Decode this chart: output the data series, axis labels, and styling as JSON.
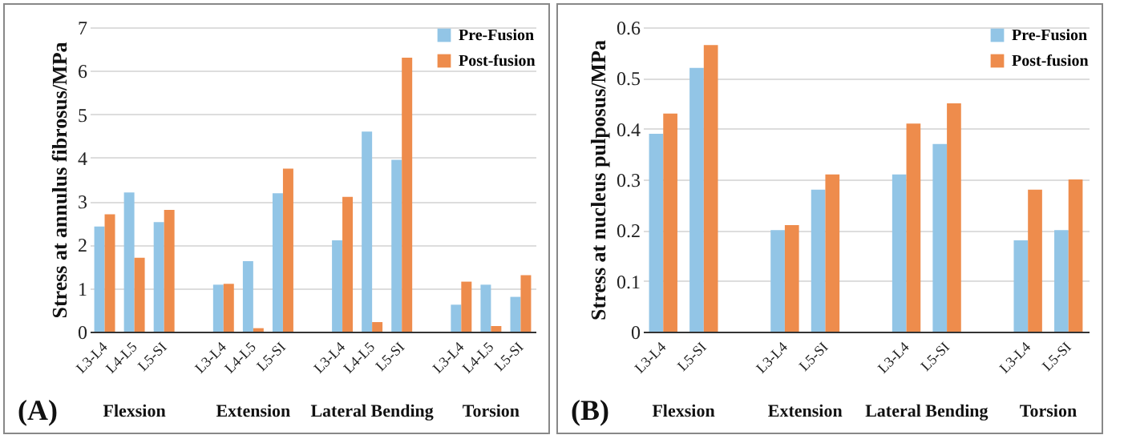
{
  "chart_data": [
    {
      "type": "bar",
      "ylabel": "Stress at annulus fibrosus/MPa",
      "categories": [
        "L3-L4",
        "L4-L5",
        "L5-SI",
        null,
        "L3-L4",
        "L4-L5",
        "L5-SI",
        null,
        "L3-L4",
        "L4-L5",
        "L5-SI",
        null,
        "L3-L4",
        "L4-L5",
        "L5-SI"
      ],
      "series": [
        {
          "name": "Pre-Fusion",
          "color": "#92c5e6",
          "values": [
            2.42,
            3.2,
            2.52,
            null,
            1.08,
            1.62,
            3.18,
            null,
            2.1,
            4.6,
            3.95,
            null,
            0.62,
            1.08,
            0.8
          ]
        },
        {
          "name": "Post-fusion",
          "color": "#ee8c4c",
          "values": [
            2.7,
            1.7,
            2.8,
            null,
            1.1,
            0.08,
            3.75,
            null,
            3.1,
            0.22,
            6.3,
            null,
            1.15,
            0.13,
            1.3
          ]
        }
      ],
      "ylim": [
        0,
        7
      ],
      "yticks": [
        0,
        1,
        2,
        3,
        4,
        5,
        6,
        7
      ],
      "grid": "y",
      "legend": "top right",
      "annotations": [
        "(A)",
        "Flexsion",
        "Extension",
        "Lateral Bending",
        "Torsion"
      ]
    },
    {
      "type": "bar",
      "ylabel": "Stress at nucleus pulposus/MPa",
      "categories": [
        "L3-L4",
        "L5-SI",
        null,
        "L3-L4",
        "L5-SI",
        null,
        "L3-L4",
        "L5-SI",
        null,
        "L3-L4",
        "L5-SI"
      ],
      "series": [
        {
          "name": "Pre-Fusion",
          "color": "#92c5e6",
          "values": [
            0.39,
            0.52,
            null,
            0.2,
            0.28,
            null,
            0.31,
            0.37,
            null,
            0.18,
            0.2
          ]
        },
        {
          "name": "Post-fusion",
          "color": "#ee8c4c",
          "values": [
            0.43,
            0.565,
            null,
            0.21,
            0.31,
            null,
            0.41,
            0.45,
            null,
            0.28,
            0.3
          ]
        }
      ],
      "ylim": [
        0,
        0.6
      ],
      "yticks": [
        0,
        0.1,
        0.2,
        0.3,
        0.4,
        0.5,
        0.6
      ],
      "grid": "y",
      "legend": "top right",
      "annotations": [
        "(B)",
        "Flexsion",
        "Extension",
        "Lateral Bending",
        "Torsion"
      ]
    }
  ]
}
